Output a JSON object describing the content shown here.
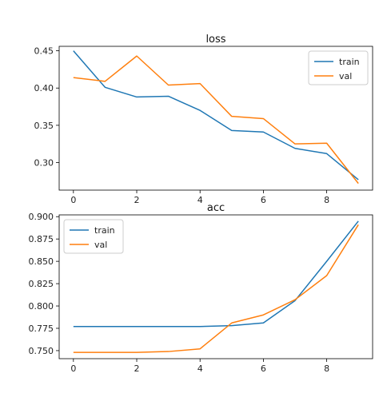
{
  "chart_data": [
    {
      "type": "line",
      "title": "loss",
      "x": [
        0,
        1,
        2,
        3,
        4,
        5,
        6,
        7,
        8,
        9
      ],
      "xticks": [
        0,
        2,
        4,
        6,
        8
      ],
      "xlim": [
        -0.45,
        9.45
      ],
      "ylim": [
        0.263,
        0.456
      ],
      "yticks": [
        0.3,
        0.35,
        0.4,
        0.45
      ],
      "ytick_labels": [
        "0.30",
        "0.35",
        "0.40",
        "0.45"
      ],
      "legend": "top-right",
      "grid": false,
      "series": [
        {
          "name": "train",
          "color": "#1f77b4",
          "values": [
            0.45,
            0.401,
            0.388,
            0.389,
            0.37,
            0.343,
            0.341,
            0.319,
            0.312,
            0.277
          ]
        },
        {
          "name": "val",
          "color": "#ff7f0e",
          "values": [
            0.414,
            0.409,
            0.443,
            0.404,
            0.406,
            0.362,
            0.359,
            0.325,
            0.326,
            0.272
          ]
        }
      ]
    },
    {
      "type": "line",
      "title": "acc",
      "x": [
        0,
        1,
        2,
        3,
        4,
        5,
        6,
        7,
        8,
        9
      ],
      "xticks": [
        0,
        2,
        4,
        6,
        8
      ],
      "xlim": [
        -0.45,
        9.45
      ],
      "ylim": [
        0.741,
        0.902
      ],
      "yticks": [
        0.75,
        0.775,
        0.8,
        0.825,
        0.85,
        0.875,
        0.9
      ],
      "ytick_labels": [
        "0.750",
        "0.775",
        "0.800",
        "0.825",
        "0.850",
        "0.875",
        "0.900"
      ],
      "legend": "top-left",
      "grid": false,
      "series": [
        {
          "name": "train",
          "color": "#1f77b4",
          "values": [
            0.777,
            0.777,
            0.777,
            0.777,
            0.777,
            0.778,
            0.781,
            0.806,
            0.85,
            0.895
          ]
        },
        {
          "name": "val",
          "color": "#ff7f0e",
          "values": [
            0.748,
            0.748,
            0.748,
            0.749,
            0.752,
            0.781,
            0.79,
            0.807,
            0.834,
            0.891
          ]
        }
      ]
    }
  ]
}
